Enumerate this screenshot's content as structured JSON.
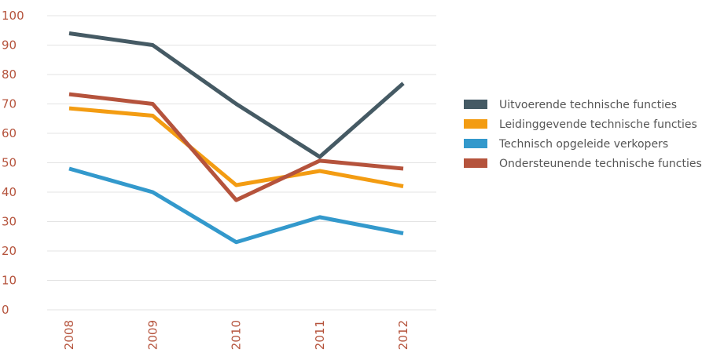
{
  "chart_data": {
    "type": "line",
    "categories": [
      "2008",
      "2009",
      "2010",
      "2011",
      "2012"
    ],
    "series": [
      {
        "name": "Uitvoerende technische functies",
        "color": "#455a64",
        "values": [
          94,
          90,
          70,
          52,
          77
        ]
      },
      {
        "name": "Leidinggevende technische functies",
        "color": "#f39c12",
        "values": [
          68.5,
          66,
          42.4,
          47.2,
          42
        ]
      },
      {
        "name": "Technisch opgeleide verkopers",
        "color": "#3399cc",
        "values": [
          48,
          40,
          23,
          31.5,
          26
        ]
      },
      {
        "name": "Ondersteunende technische functies",
        "color": "#b5533c",
        "values": [
          73.3,
          70,
          37.3,
          50.7,
          48
        ]
      }
    ],
    "ylim": [
      0,
      100
    ],
    "yticks": [
      0,
      10,
      20,
      30,
      40,
      50,
      60,
      70,
      80,
      90,
      100
    ],
    "grid": true,
    "legend": "right"
  }
}
